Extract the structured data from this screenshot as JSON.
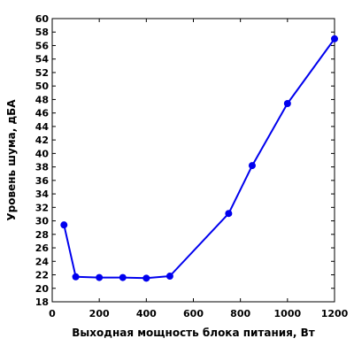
{
  "chart_data": {
    "type": "line",
    "title": "",
    "xlabel": "Выходная мощность блока питания, Вт",
    "ylabel": "Уровень шума, дБА",
    "xlim": [
      0,
      1200
    ],
    "ylim": [
      18,
      60
    ],
    "x_ticks": [
      0,
      200,
      400,
      600,
      800,
      1000,
      1200
    ],
    "y_ticks": [
      18,
      20,
      22,
      24,
      26,
      28,
      30,
      32,
      34,
      36,
      38,
      40,
      42,
      44,
      46,
      48,
      50,
      52,
      54,
      56,
      58,
      60
    ],
    "grid": false,
    "legend": "none",
    "series": [
      {
        "color": "#0000ee",
        "points": [
          {
            "x": 50,
            "y": 29.4
          },
          {
            "x": 100,
            "y": 21.7
          },
          {
            "x": 200,
            "y": 21.6
          },
          {
            "x": 300,
            "y": 21.6
          },
          {
            "x": 400,
            "y": 21.5
          },
          {
            "x": 500,
            "y": 21.8
          },
          {
            "x": 750,
            "y": 31.1
          },
          {
            "x": 850,
            "y": 38.2
          },
          {
            "x": 1000,
            "y": 47.4
          },
          {
            "x": 1200,
            "y": 57.0
          }
        ]
      }
    ]
  }
}
